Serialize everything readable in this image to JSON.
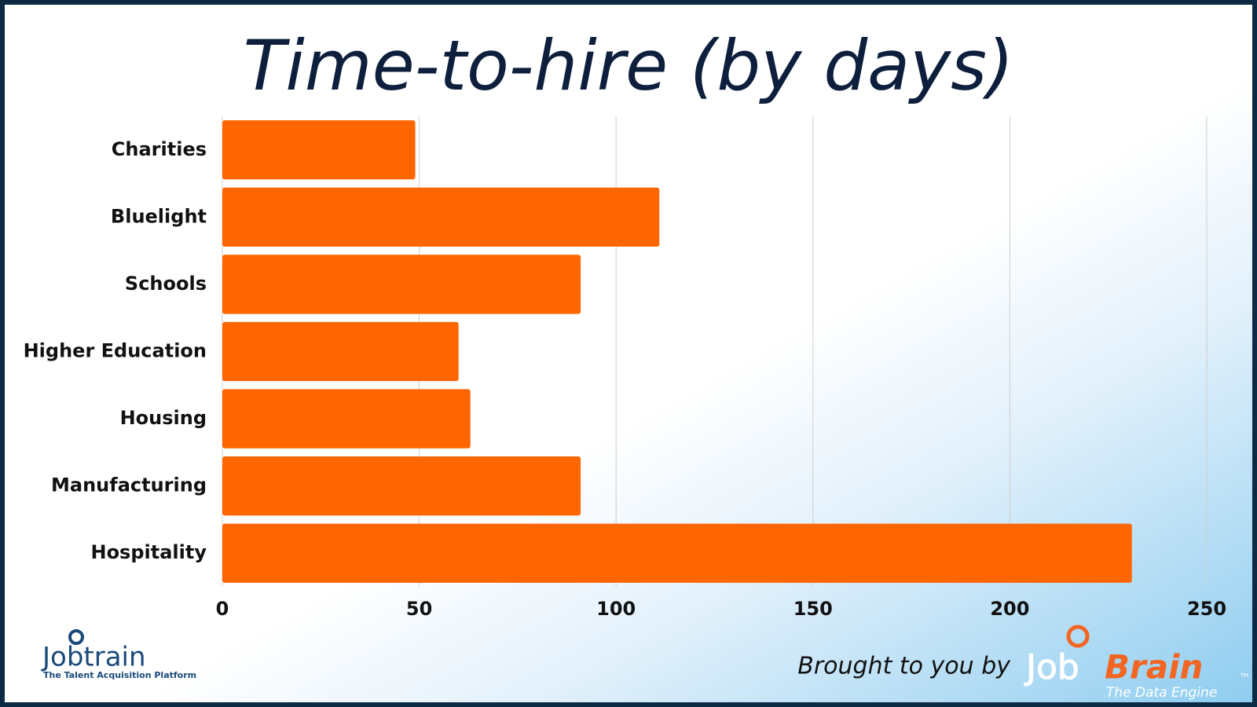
{
  "chart_data": {
    "type": "barh",
    "title": "Time-to-hire (by days)",
    "categories": [
      "Charities",
      "Bluelight",
      "Schools",
      "Higher Education",
      "Housing",
      "Manufacturing",
      "Hospitality"
    ],
    "values": [
      49,
      111,
      91,
      60,
      63,
      91,
      231
    ],
    "color": "#ff6600",
    "xlim": [
      0,
      250
    ],
    "xticks": [
      0,
      50,
      100,
      150,
      200,
      250
    ],
    "grid": true
  },
  "footer": {
    "left_logo": "Jobtrain",
    "left_tagline": "The Talent Acquisition Platform",
    "credit": "Brought to you by",
    "right_logo_a": "Job",
    "right_logo_b": "Brain",
    "right_tagline": "The Data Engine",
    "trademark": "TM"
  }
}
